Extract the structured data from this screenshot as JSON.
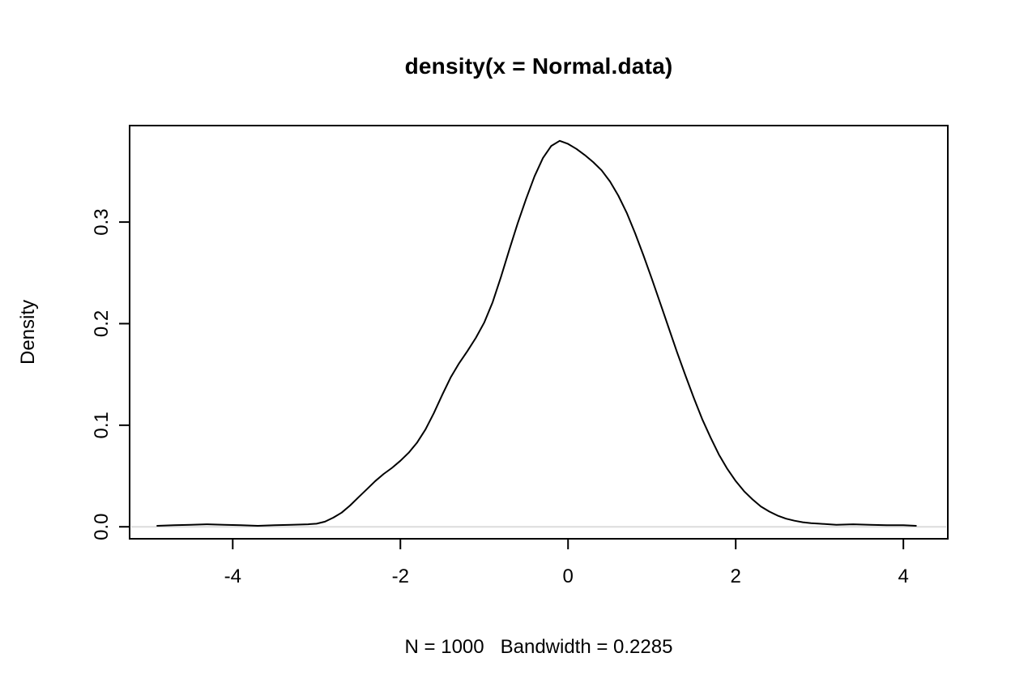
{
  "chart_data": {
    "type": "line",
    "title": "density(x = Normal.data)",
    "xlabel": "N = 1000   Bandwidth = 0.2285",
    "ylabel": "Density",
    "n": 1000,
    "bandwidth": 0.2285,
    "grid": false,
    "legend": false,
    "xlim": [
      -5.23,
      4.53
    ],
    "ylim": [
      -0.0118,
      0.395
    ],
    "x_ticks": [
      -4,
      -2,
      0,
      2,
      4
    ],
    "x_tick_labels": [
      "-4",
      "-2",
      "0",
      "2",
      "4"
    ],
    "y_ticks": [
      0.0,
      0.1,
      0.2,
      0.3
    ],
    "y_tick_labels": [
      "0.0",
      "0.1",
      "0.2",
      "0.3"
    ],
    "line_color": "#000000",
    "series": [
      {
        "name": "density",
        "color": "#000000",
        "x": [
          -4.9,
          -4.7,
          -4.5,
          -4.3,
          -4.1,
          -3.9,
          -3.7,
          -3.5,
          -3.3,
          -3.1,
          -3.0,
          -2.9,
          -2.8,
          -2.7,
          -2.6,
          -2.5,
          -2.4,
          -2.3,
          -2.2,
          -2.1,
          -2.0,
          -1.9,
          -1.8,
          -1.7,
          -1.6,
          -1.5,
          -1.4,
          -1.3,
          -1.2,
          -1.1,
          -1.0,
          -0.9,
          -0.8,
          -0.7,
          -0.6,
          -0.5,
          -0.4,
          -0.3,
          -0.2,
          -0.1,
          0.0,
          0.1,
          0.2,
          0.3,
          0.4,
          0.5,
          0.6,
          0.7,
          0.8,
          0.9,
          1.0,
          1.1,
          1.2,
          1.3,
          1.4,
          1.5,
          1.6,
          1.7,
          1.8,
          1.9,
          2.0,
          2.1,
          2.2,
          2.3,
          2.4,
          2.5,
          2.6,
          2.7,
          2.8,
          2.9,
          3.0,
          3.2,
          3.4,
          3.6,
          3.8,
          4.0,
          4.15
        ],
        "y": [
          0.001,
          0.0015,
          0.002,
          0.0025,
          0.002,
          0.0015,
          0.001,
          0.0015,
          0.002,
          0.0025,
          0.003,
          0.005,
          0.009,
          0.014,
          0.021,
          0.029,
          0.037,
          0.045,
          0.052,
          0.058,
          0.065,
          0.073,
          0.083,
          0.096,
          0.112,
          0.13,
          0.147,
          0.161,
          0.173,
          0.186,
          0.201,
          0.221,
          0.246,
          0.273,
          0.299,
          0.323,
          0.345,
          0.363,
          0.375,
          0.38,
          0.377,
          0.372,
          0.366,
          0.359,
          0.351,
          0.34,
          0.326,
          0.309,
          0.289,
          0.267,
          0.244,
          0.22,
          0.196,
          0.172,
          0.149,
          0.127,
          0.106,
          0.088,
          0.071,
          0.057,
          0.045,
          0.035,
          0.027,
          0.02,
          0.015,
          0.011,
          0.008,
          0.006,
          0.0045,
          0.0035,
          0.003,
          0.002,
          0.0025,
          0.002,
          0.0015,
          0.0015,
          0.001
        ]
      }
    ]
  }
}
